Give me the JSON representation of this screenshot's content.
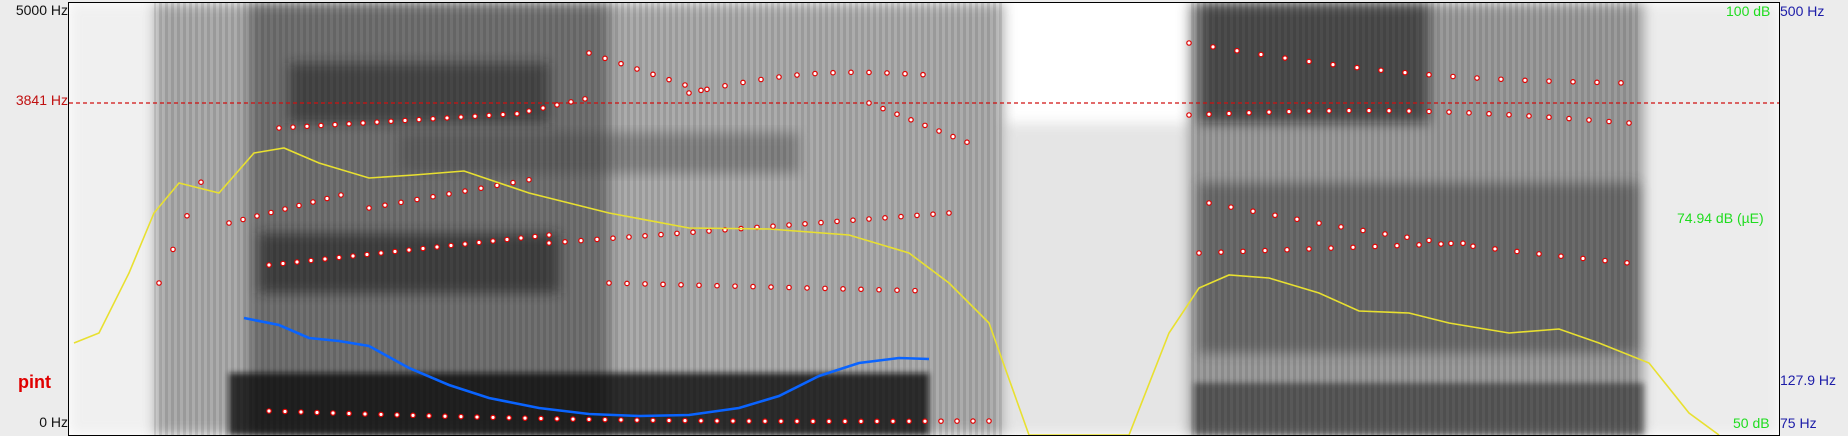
{
  "axis_left": {
    "freq_top": "5000 Hz",
    "freq_cursor": "3841 Hz",
    "freq_bottom": "0 Hz"
  },
  "word_label": "pint",
  "axis_right": {
    "intensity_top": "100 dB",
    "pitch_top": "500 Hz",
    "intensity_cursor_value": "74.94 dB (µE)",
    "pitch_value": "127.9 Hz",
    "intensity_bottom": "50 dB",
    "pitch_bottom": "75 Hz"
  },
  "colors": {
    "cursor": "#d01010",
    "formant": "#e00000",
    "intensity": "#e0e020",
    "pitch": "#0a64ff",
    "right_axis": "#1c1ca8",
    "intensity_axis": "#1fdc1f",
    "word_label": "#e00000"
  },
  "icons": [
    "spectrogram-panel"
  ]
}
